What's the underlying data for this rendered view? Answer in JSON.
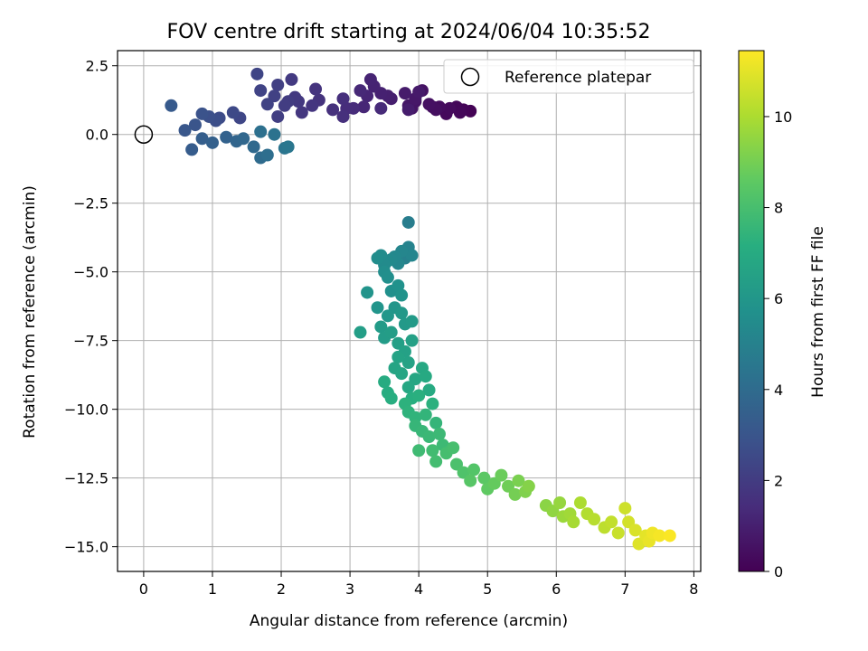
{
  "chart_data": {
    "type": "scatter",
    "title": "FOV centre drift starting at 2024/06/04 10:35:52",
    "xlabel": "Angular distance from reference (arcmin)",
    "ylabel": "Rotation from reference (arcmin)",
    "colorbar_label": "Hours from first FF file",
    "colormap": "viridis",
    "xlim": [
      -0.38,
      8.1
    ],
    "ylim": [
      -15.9,
      3.05
    ],
    "clim": [
      0,
      11.45
    ],
    "xticks": [
      0,
      1,
      2,
      3,
      4,
      5,
      6,
      7,
      8
    ],
    "yticks": [
      2.5,
      0.0,
      -2.5,
      -5.0,
      -7.5,
      -10.0,
      -12.5,
      -15.0
    ],
    "ytick_labels": [
      "2.5",
      "0.0",
      "−2.5",
      "−5.0",
      "−7.5",
      "−10.0",
      "−12.5",
      "−15.0"
    ],
    "cticks": [
      0,
      2,
      4,
      6,
      8,
      10
    ],
    "grid": true,
    "legend": {
      "position": "top-right",
      "entries": [
        "Reference platepar"
      ]
    },
    "reference": {
      "x": 0.0,
      "y": 0.0
    },
    "points": [
      [
        4.75,
        0.85,
        0.05
      ],
      [
        4.65,
        0.9,
        0.1
      ],
      [
        4.55,
        1.0,
        0.15
      ],
      [
        4.6,
        0.8,
        0.2
      ],
      [
        4.4,
        0.75,
        0.25
      ],
      [
        4.45,
        0.95,
        0.3
      ],
      [
        4.3,
        1.0,
        0.35
      ],
      [
        4.2,
        1.0,
        0.4
      ],
      [
        4.25,
        0.9,
        0.45
      ],
      [
        4.15,
        1.1,
        0.5
      ],
      [
        4.05,
        1.6,
        0.55
      ],
      [
        3.95,
        1.2,
        0.6
      ],
      [
        3.9,
        0.95,
        0.65
      ],
      [
        3.85,
        1.05,
        0.7
      ],
      [
        3.95,
        1.3,
        0.75
      ],
      [
        4.0,
        1.55,
        0.8
      ],
      [
        3.8,
        1.5,
        0.85
      ],
      [
        3.85,
        0.9,
        0.9
      ],
      [
        3.6,
        1.3,
        0.95
      ],
      [
        3.55,
        1.4,
        1.0
      ],
      [
        3.45,
        1.5,
        1.05
      ],
      [
        3.35,
        1.75,
        1.1
      ],
      [
        3.3,
        2.0,
        1.15
      ],
      [
        3.25,
        1.4,
        1.2
      ],
      [
        3.2,
        1.0,
        1.25
      ],
      [
        3.15,
        1.6,
        1.3
      ],
      [
        3.45,
        0.95,
        1.35
      ],
      [
        3.05,
        0.95,
        1.4
      ],
      [
        2.95,
        0.95,
        1.45
      ],
      [
        2.9,
        1.3,
        1.5
      ],
      [
        2.9,
        0.65,
        1.55
      ],
      [
        2.75,
        0.9,
        1.6
      ],
      [
        2.55,
        1.25,
        1.65
      ],
      [
        2.5,
        1.65,
        1.7
      ],
      [
        2.45,
        1.05,
        1.75
      ],
      [
        2.3,
        0.8,
        1.8
      ],
      [
        2.25,
        1.2,
        1.85
      ],
      [
        2.2,
        1.35,
        1.9
      ],
      [
        2.15,
        2.0,
        1.95
      ],
      [
        2.1,
        1.2,
        2.0
      ],
      [
        2.05,
        1.05,
        2.05
      ],
      [
        1.95,
        0.65,
        2.1
      ],
      [
        1.95,
        1.8,
        2.15
      ],
      [
        1.9,
        1.4,
        2.2
      ],
      [
        1.8,
        1.1,
        2.25
      ],
      [
        1.7,
        1.6,
        2.3
      ],
      [
        1.65,
        2.2,
        2.35
      ],
      [
        1.4,
        0.6,
        2.4
      ],
      [
        1.3,
        0.8,
        2.5
      ],
      [
        1.1,
        0.6,
        2.6
      ],
      [
        1.05,
        0.5,
        2.7
      ],
      [
        0.95,
        0.65,
        2.8
      ],
      [
        0.85,
        0.75,
        2.9
      ],
      [
        0.75,
        0.35,
        3.0
      ],
      [
        0.6,
        0.15,
        3.1
      ],
      [
        0.4,
        1.05,
        3.2
      ],
      [
        0.7,
        -0.55,
        3.3
      ],
      [
        0.85,
        -0.15,
        3.4
      ],
      [
        1.0,
        -0.3,
        3.5
      ],
      [
        1.2,
        -0.1,
        3.6
      ],
      [
        1.35,
        -0.25,
        3.7
      ],
      [
        1.45,
        -0.15,
        3.8
      ],
      [
        1.6,
        -0.45,
        3.9
      ],
      [
        1.7,
        -0.85,
        4.0
      ],
      [
        1.8,
        -0.75,
        4.1
      ],
      [
        1.7,
        0.1,
        4.2
      ],
      [
        1.9,
        0.0,
        4.3
      ],
      [
        2.05,
        -0.5,
        4.4
      ],
      [
        2.1,
        -0.45,
        4.5
      ],
      [
        3.85,
        -3.2,
        4.8
      ],
      [
        3.8,
        -4.5,
        5.0
      ],
      [
        3.85,
        -4.1,
        5.1
      ],
      [
        3.9,
        -4.4,
        5.15
      ],
      [
        3.75,
        -4.25,
        5.2
      ],
      [
        3.7,
        -4.7,
        5.25
      ],
      [
        3.65,
        -4.45,
        5.3
      ],
      [
        3.6,
        -4.55,
        5.35
      ],
      [
        3.55,
        -4.6,
        5.4
      ],
      [
        3.5,
        -4.75,
        5.45
      ],
      [
        3.45,
        -4.4,
        5.5
      ],
      [
        3.4,
        -4.5,
        5.55
      ],
      [
        3.5,
        -5.0,
        5.6
      ],
      [
        3.55,
        -5.2,
        5.65
      ],
      [
        3.6,
        -5.7,
        5.7
      ],
      [
        3.7,
        -5.5,
        5.75
      ],
      [
        3.75,
        -5.85,
        5.8
      ],
      [
        3.25,
        -5.75,
        5.85
      ],
      [
        3.4,
        -6.3,
        5.9
      ],
      [
        3.65,
        -6.3,
        5.95
      ],
      [
        3.55,
        -6.6,
        6.0
      ],
      [
        3.75,
        -6.5,
        6.05
      ],
      [
        3.8,
        -6.9,
        6.1
      ],
      [
        3.9,
        -6.8,
        6.15
      ],
      [
        3.45,
        -7.0,
        6.2
      ],
      [
        3.5,
        -7.4,
        6.25
      ],
      [
        3.6,
        -7.2,
        6.3
      ],
      [
        3.15,
        -7.2,
        6.35
      ],
      [
        3.7,
        -7.6,
        6.4
      ],
      [
        3.9,
        -7.5,
        6.45
      ],
      [
        3.8,
        -7.9,
        6.5
      ],
      [
        3.85,
        -8.3,
        6.55
      ],
      [
        3.7,
        -8.1,
        6.6
      ],
      [
        3.65,
        -8.5,
        6.65
      ],
      [
        3.75,
        -8.7,
        6.7
      ],
      [
        3.95,
        -8.9,
        6.75
      ],
      [
        3.85,
        -9.2,
        6.8
      ],
      [
        4.05,
        -8.5,
        6.85
      ],
      [
        4.1,
        -8.8,
        6.9
      ],
      [
        4.15,
        -9.3,
        6.95
      ],
      [
        3.5,
        -9.0,
        7.0
      ],
      [
        3.55,
        -9.4,
        7.05
      ],
      [
        3.6,
        -9.6,
        7.1
      ],
      [
        3.9,
        -9.6,
        7.15
      ],
      [
        4.0,
        -9.5,
        7.2
      ],
      [
        4.2,
        -9.8,
        7.25
      ],
      [
        3.8,
        -9.8,
        7.3
      ],
      [
        3.85,
        -10.1,
        7.35
      ],
      [
        3.95,
        -10.3,
        7.4
      ],
      [
        4.1,
        -10.2,
        7.45
      ],
      [
        4.25,
        -10.5,
        7.5
      ],
      [
        3.95,
        -10.6,
        7.55
      ],
      [
        4.05,
        -10.8,
        7.6
      ],
      [
        4.15,
        -11.0,
        7.65
      ],
      [
        4.3,
        -10.9,
        7.7
      ],
      [
        4.35,
        -11.3,
        7.75
      ],
      [
        4.0,
        -11.5,
        7.8
      ],
      [
        4.2,
        -11.5,
        7.85
      ],
      [
        4.25,
        -11.9,
        7.9
      ],
      [
        4.4,
        -11.6,
        7.95
      ],
      [
        4.5,
        -11.4,
        8.0
      ],
      [
        4.55,
        -12.0,
        8.1
      ],
      [
        4.65,
        -12.3,
        8.2
      ],
      [
        4.8,
        -12.2,
        8.3
      ],
      [
        4.75,
        -12.6,
        8.4
      ],
      [
        4.95,
        -12.5,
        8.5
      ],
      [
        5.0,
        -12.9,
        8.6
      ],
      [
        5.1,
        -12.7,
        8.7
      ],
      [
        5.2,
        -12.4,
        8.8
      ],
      [
        5.3,
        -12.8,
        8.9
      ],
      [
        5.4,
        -13.1,
        9.0
      ],
      [
        5.45,
        -12.6,
        9.1
      ],
      [
        5.55,
        -13.0,
        9.2
      ],
      [
        5.6,
        -12.8,
        9.3
      ],
      [
        5.85,
        -13.5,
        9.4
      ],
      [
        5.95,
        -13.7,
        9.5
      ],
      [
        6.05,
        -13.4,
        9.6
      ],
      [
        6.1,
        -13.9,
        9.7
      ],
      [
        6.2,
        -13.8,
        9.8
      ],
      [
        6.25,
        -14.1,
        9.9
      ],
      [
        6.35,
        -13.4,
        10.0
      ],
      [
        6.45,
        -13.8,
        10.1
      ],
      [
        6.55,
        -14.0,
        10.2
      ],
      [
        6.7,
        -14.3,
        10.3
      ],
      [
        6.8,
        -14.1,
        10.4
      ],
      [
        6.9,
        -14.5,
        10.5
      ],
      [
        7.0,
        -13.6,
        10.6
      ],
      [
        7.05,
        -14.1,
        10.7
      ],
      [
        7.15,
        -14.4,
        10.8
      ],
      [
        7.2,
        -14.9,
        10.9
      ],
      [
        7.3,
        -14.6,
        11.0
      ],
      [
        7.35,
        -14.8,
        11.1
      ],
      [
        7.4,
        -14.5,
        11.2
      ],
      [
        7.5,
        -14.6,
        11.3
      ],
      [
        7.65,
        -14.6,
        11.4
      ]
    ]
  }
}
